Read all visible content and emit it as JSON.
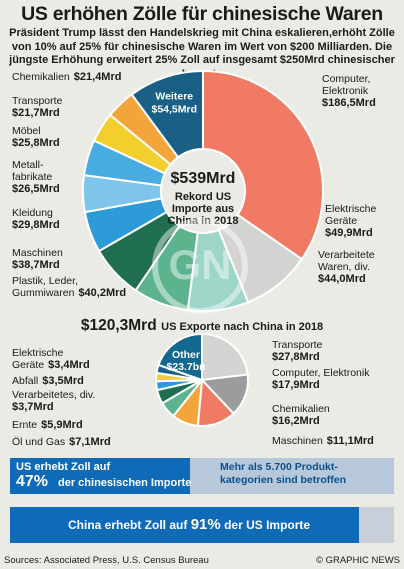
{
  "title": "US erhöhen Zölle für chinesische Waren",
  "subtitle": "Präsident Trump lässt den Handelskrieg mit China eskalieren,erhöht Zölle von 10% auf 25% für chinesische Waren im Wert von $200 Milliarden. Die jüngste Erhöhung erweitert 25% Zoll auf insgesamt $250Mrd chinesischer Importe",
  "chart_data": [
    {
      "type": "pie",
      "title": "",
      "center": {
        "value": "$539Mrd",
        "line1": "Rekord US",
        "line2": "Importe aus",
        "line3": "China in 2018"
      },
      "unit": "Mrd $",
      "slices": [
        {
          "label": "Computer, Elektronik",
          "value": 186.5,
          "value_label": "$186,5Mrd",
          "color": "#f07a63"
        },
        {
          "label": "Elektrische Geräte",
          "value": 49.9,
          "value_label": "$49,9Mrd",
          "color": "#d3d4d1"
        },
        {
          "label": "Verarbeitete Waren, div.",
          "value": 44.0,
          "value_label": "$44,0Mrd",
          "color": "#9ed5c9"
        },
        {
          "label": "Plastik, Leder, Gummiwaren",
          "value": 40.2,
          "value_label": "$40,2Mrd",
          "color": "#5db38e"
        },
        {
          "label": "Maschinen",
          "value": 38.7,
          "value_label": "$38,7Mrd",
          "color": "#1f6e4f"
        },
        {
          "label": "Kleidung",
          "value": 29.8,
          "value_label": "$29,8Mrd",
          "color": "#2c9bd8"
        },
        {
          "label": "Metall- fabrikate",
          "value": 26.5,
          "value_label": "$26,5Mrd",
          "color": "#7ec5eb"
        },
        {
          "label": "Möbel",
          "value": 25.8,
          "value_label": "$25,8Mrd",
          "color": "#49ace0"
        },
        {
          "label": "Transporte",
          "value": 21.7,
          "value_label": "$21,7Mrd",
          "color": "#f2cf2c"
        },
        {
          "label": "Chemikalien",
          "value": 21.4,
          "value_label": "$21,4Mrd",
          "color": "#f3a43a"
        },
        {
          "label": "Weitere",
          "value": 54.5,
          "value_label": "$54,5Mrd",
          "color": "#1a5f85"
        }
      ]
    },
    {
      "type": "pie",
      "title": "$120,3Mrd US Exporte nach China in 2018",
      "title_big": "$120,3Mrd",
      "title_small": "US Exporte nach China in 2018",
      "unit": "Mrd $",
      "slices": [
        {
          "label": "Transporte",
          "value": 27.8,
          "value_label": "$27,8Mrd",
          "color": "#d3d4d1"
        },
        {
          "label": "Computer, Elektronik",
          "value": 17.9,
          "value_label": "$17,9Mrd",
          "color": "#9c9c9c"
        },
        {
          "label": "Chemikalien",
          "value": 16.2,
          "value_label": "$16,2Mrd",
          "color": "#f07a63"
        },
        {
          "label": "Maschinen",
          "value": 11.1,
          "value_label": "$11,1Mrd",
          "color": "#f3a43a"
        },
        {
          "label": "Öl und Gas",
          "value": 7.1,
          "value_label": "$7,1Mrd",
          "color": "#5db38e"
        },
        {
          "label": "Ernte",
          "value": 5.9,
          "value_label": "$5,9Mrd",
          "color": "#1f6e4f"
        },
        {
          "label": "Verarbeitetes, div.",
          "value": 3.7,
          "value_label": "$3,7Mrd",
          "color": "#2c9bd8"
        },
        {
          "label": "Abfall",
          "value": 3.5,
          "value_label": "$3,5Mrd",
          "color": "#f2cf2c"
        },
        {
          "label": "Elektrische Geräte",
          "value": 3.4,
          "value_label": "$3,4Mrd",
          "color": "#1a5f85"
        },
        {
          "label": "Other",
          "value": 23.7,
          "value_label": "$23.7bn",
          "color": "#12688f"
        }
      ]
    }
  ],
  "bar_us": {
    "line1": "US erhebt Zoll auf",
    "percent_label": "47%",
    "line2": "der chinesischen Importe",
    "percent": 47,
    "note": "Mehr als 5.700 Produkt- kategorien sind betroffen"
  },
  "bar_china": {
    "line_pre": "China erhebt Zoll auf",
    "percent_label": "91%",
    "line_post": "der US Importe",
    "percent": 91
  },
  "footer": {
    "source": "Sources: Associated Press, U.S. Census Bureau",
    "copyright": "© GRAPHIC NEWS"
  },
  "colors": {
    "background": "#ebebe6",
    "bar_blue": "#0f6bb8",
    "bar_light": "#c9cfd8"
  }
}
